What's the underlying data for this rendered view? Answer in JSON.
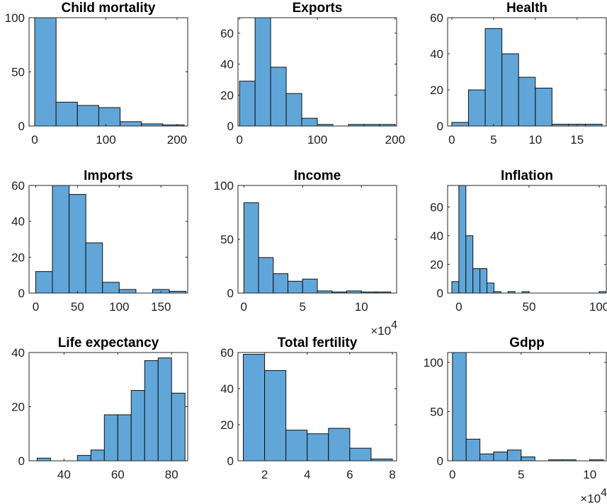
{
  "chart_data": [
    {
      "type": "bar",
      "title": "Child mortality",
      "xlim": [
        -8,
        215
      ],
      "ylim": [
        0,
        100
      ],
      "xticks": [
        0,
        100,
        200
      ],
      "xtick_labels": [
        "0",
        "100",
        "200"
      ],
      "yticks": [
        0,
        50,
        100
      ],
      "ytick_labels": [
        "0",
        "50",
        "100"
      ],
      "bin_edges": [
        0,
        30,
        60,
        90,
        120,
        150,
        180,
        210
      ],
      "values": [
        113,
        22,
        19,
        17,
        4,
        2,
        1
      ],
      "exponent_label": ""
    },
    {
      "type": "bar",
      "title": "Exports",
      "xlim": [
        -2,
        202
      ],
      "ylim": [
        0,
        70
      ],
      "xticks": [
        0,
        100,
        200
      ],
      "xtick_labels": [
        "0",
        "100",
        "200"
      ],
      "yticks": [
        0,
        20,
        40,
        60
      ],
      "ytick_labels": [
        "0",
        "20",
        "40",
        "60"
      ],
      "bin_edges": [
        0,
        20,
        40,
        60,
        80,
        100,
        120,
        140,
        160,
        180,
        200
      ],
      "values": [
        29,
        71,
        38,
        21,
        5,
        1,
        0,
        1,
        1,
        1
      ],
      "exponent_label": ""
    },
    {
      "type": "bar",
      "title": "Health",
      "xlim": [
        -0.5,
        18.5
      ],
      "ylim": [
        0,
        60
      ],
      "xticks": [
        0,
        5,
        10,
        15
      ],
      "xtick_labels": [
        "0",
        "5",
        "10",
        "15"
      ],
      "yticks": [
        0,
        20,
        40,
        60
      ],
      "ytick_labels": [
        "0",
        "20",
        "40",
        "60"
      ],
      "bin_edges": [
        0,
        2,
        4,
        6,
        8,
        10,
        12,
        14,
        16,
        18
      ],
      "values": [
        2,
        20,
        54,
        40,
        27,
        21,
        1,
        1,
        1
      ],
      "exponent_label": ""
    },
    {
      "type": "bar",
      "title": "Imports",
      "xlim": [
        -8,
        182
      ],
      "ylim": [
        0,
        60
      ],
      "xticks": [
        0,
        50,
        100,
        150
      ],
      "xtick_labels": [
        "0",
        "50",
        "100",
        "150"
      ],
      "yticks": [
        0,
        20,
        40,
        60
      ],
      "ytick_labels": [
        "0",
        "20",
        "40",
        "60"
      ],
      "bin_edges": [
        0,
        20,
        40,
        60,
        80,
        100,
        120,
        140,
        160,
        180
      ],
      "values": [
        12,
        64,
        55,
        28,
        6,
        2,
        0,
        2,
        1
      ],
      "exponent_label": ""
    },
    {
      "type": "bar",
      "title": "Income",
      "xlim": [
        -0.5,
        13
      ],
      "ylim": [
        0,
        100
      ],
      "xticks": [
        0,
        5,
        10
      ],
      "xtick_labels": [
        "0",
        "5",
        "10"
      ],
      "yticks": [
        0,
        50,
        100
      ],
      "ytick_labels": [
        "0",
        "50",
        "100"
      ],
      "bin_edges": [
        0,
        1.25,
        2.5,
        3.75,
        5,
        6.25,
        7.5,
        8.75,
        10,
        11.25,
        12.5
      ],
      "values": [
        84,
        33,
        18,
        11,
        13,
        2,
        1,
        2,
        1,
        1
      ],
      "exponent_label": "×10⁴"
    },
    {
      "type": "bar",
      "title": "Inflation",
      "xlim": [
        -8,
        105
      ],
      "ylim": [
        0,
        75
      ],
      "xticks": [
        0,
        50,
        100
      ],
      "xtick_labels": [
        "0",
        "50",
        "100"
      ],
      "yticks": [
        0,
        20,
        40,
        60
      ],
      "ytick_labels": [
        "0",
        "20",
        "40",
        "60"
      ],
      "bin_edges": [
        -5,
        0,
        5,
        10,
        15,
        20,
        25,
        30,
        35,
        40,
        45,
        50,
        55,
        60,
        65,
        70,
        75,
        80,
        85,
        90,
        95,
        100,
        105
      ],
      "values": [
        8,
        80,
        40,
        17,
        17,
        7,
        1,
        0,
        1,
        0,
        1,
        0,
        0,
        0,
        0,
        0,
        0,
        0,
        0,
        0,
        0,
        1
      ],
      "exponent_label": ""
    },
    {
      "type": "bar",
      "title": "Life expectancy",
      "xlim": [
        27,
        86
      ],
      "ylim": [
        0,
        40
      ],
      "xticks": [
        40,
        60,
        80
      ],
      "xtick_labels": [
        "40",
        "60",
        "80"
      ],
      "yticks": [
        0,
        20,
        40
      ],
      "ytick_labels": [
        "0",
        "20",
        "40"
      ],
      "bin_edges": [
        30,
        35,
        40,
        45,
        50,
        55,
        60,
        65,
        70,
        75,
        80,
        85
      ],
      "values": [
        1,
        0,
        0,
        2,
        4,
        17,
        17,
        26,
        37,
        38,
        25
      ],
      "exponent_label": ""
    },
    {
      "type": "bar",
      "title": "Total fertility",
      "xlim": [
        0.75,
        8.2
      ],
      "ylim": [
        0,
        60
      ],
      "xticks": [
        2,
        4,
        6,
        8
      ],
      "xtick_labels": [
        "2",
        "4",
        "6",
        "8"
      ],
      "yticks": [
        0,
        20,
        40,
        60
      ],
      "ytick_labels": [
        "0",
        "20",
        "40",
        "60"
      ],
      "bin_edges": [
        1,
        2,
        3,
        4,
        5,
        6,
        7,
        8
      ],
      "values": [
        59,
        50,
        17,
        15,
        18,
        7,
        1
      ],
      "exponent_label": ""
    },
    {
      "type": "bar",
      "title": "Gdpp",
      "xlim": [
        -0.35,
        11.2
      ],
      "ylim": [
        0,
        110
      ],
      "xticks": [
        0,
        5,
        10
      ],
      "xtick_labels": [
        "0",
        "5",
        "10"
      ],
      "yticks": [
        0,
        50,
        100
      ],
      "ytick_labels": [
        "0",
        "50",
        "100"
      ],
      "bin_edges": [
        0,
        1,
        2,
        3,
        4,
        5,
        6,
        7,
        8,
        9,
        10,
        11
      ],
      "values": [
        120,
        22,
        7,
        9,
        11,
        4,
        0,
        1,
        1,
        0,
        1
      ],
      "exponent_label": "×10⁴"
    }
  ]
}
